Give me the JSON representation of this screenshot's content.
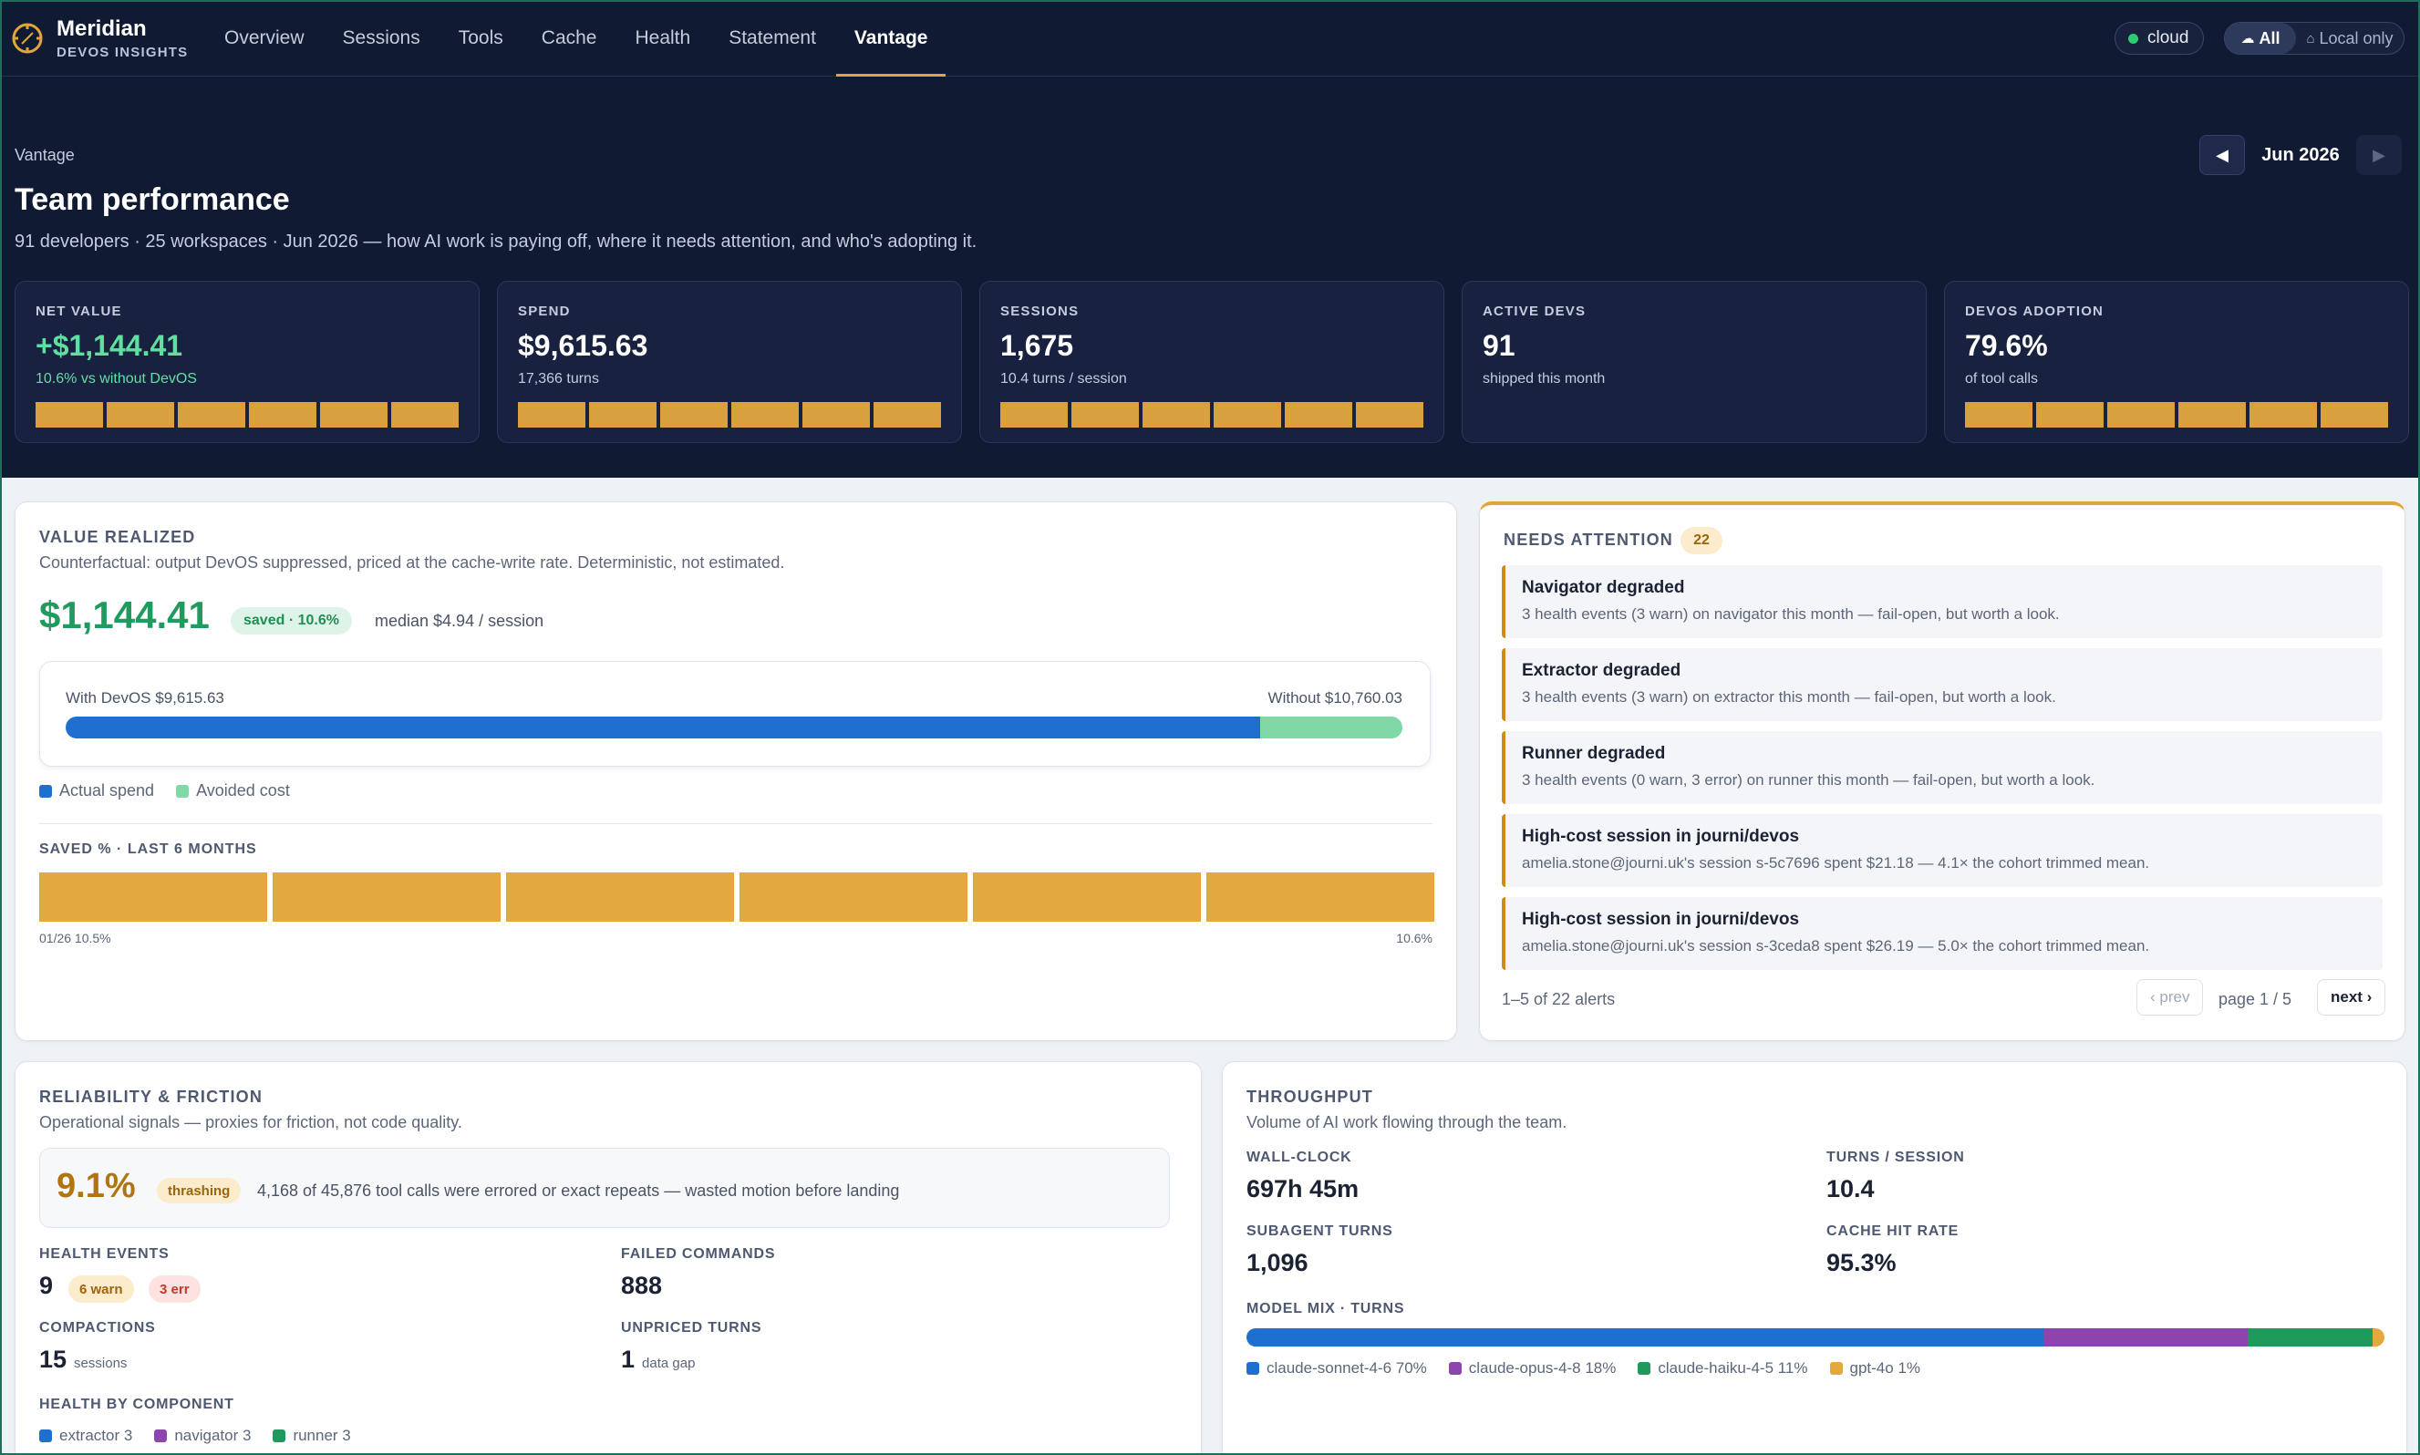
{
  "brand": {
    "name": "Meridian",
    "subtitle": "DEVOS INSIGHTS"
  },
  "nav": {
    "items": [
      "Overview",
      "Sessions",
      "Tools",
      "Cache",
      "Health",
      "Statement",
      "Vantage"
    ],
    "active": "Vantage"
  },
  "env": {
    "cloud_label": "cloud",
    "scope_all": "All",
    "scope_local": "Local only"
  },
  "hero": {
    "breadcrumb": "Vantage",
    "title": "Team performance",
    "subtitle": "91 developers · 25 workspaces · Jun 2026 — how AI work is paying off, where it needs attention, and who's adopting it.",
    "month": "Jun 2026"
  },
  "kpis": [
    {
      "label": "NET VALUE",
      "value": "+$1,144.41",
      "sub": "10.6% vs without DevOS"
    },
    {
      "label": "SPEND",
      "value": "$9,615.63",
      "sub": "17,366 turns"
    },
    {
      "label": "SESSIONS",
      "value": "1,675",
      "sub": "10.4 turns / session"
    },
    {
      "label": "ACTIVE DEVS",
      "value": "91",
      "sub": "shipped this month"
    },
    {
      "label": "DEVOS ADOPTION",
      "value": "79.6%",
      "sub": "of tool calls"
    }
  ],
  "value_realized": {
    "title": "VALUE REALIZED",
    "description": "Counterfactual: output DevOS suppressed, priced at the cache-write rate. Deterministic, not estimated.",
    "amount": "$1,144.41",
    "saved_badge": "saved · 10.6%",
    "median": "median $4.94 / session",
    "with_label": "With DevOS $9,615.63",
    "without_label": "Without $10,760.03",
    "with_value": 9615.63,
    "without_value": 10760.03,
    "legend": {
      "actual": "Actual spend",
      "avoided": "Avoided cost"
    },
    "saved_title": "SAVED % · LAST 6 MONTHS",
    "saved_start": "01/26 10.5%",
    "saved_end": "10.6%"
  },
  "needs_attention": {
    "title": "NEEDS ATTENTION",
    "count": "22",
    "alerts": [
      {
        "title": "Navigator degraded",
        "body": "3 health events (3 warn) on navigator this month — fail-open, but worth a look."
      },
      {
        "title": "Extractor degraded",
        "body": "3 health events (3 warn) on extractor this month — fail-open, but worth a look."
      },
      {
        "title": "Runner degraded",
        "body": "3 health events (0 warn, 3 error) on runner this month — fail-open, but worth a look."
      },
      {
        "title": "High-cost session in journi/devos",
        "body": "amelia.stone@journi.uk's session s-5c7696 spent $21.18 — 4.1× the cohort trimmed mean."
      },
      {
        "title": "High-cost session in journi/devos",
        "body": "amelia.stone@journi.uk's session s-3ceda8 spent $26.19 — 5.0× the cohort trimmed mean."
      }
    ],
    "pager_info": "1–5 of 22 alerts",
    "prev": "‹ prev",
    "page_label": "page 1 / 5",
    "next": "next ›"
  },
  "reliability": {
    "title": "RELIABILITY & FRICTION",
    "description": "Operational signals — proxies for friction, not code quality.",
    "thrashing_value": "9.1%",
    "thrashing_badge": "thrashing",
    "thrashing_text": "4,168 of 45,876 tool calls were errored or exact repeats — wasted motion before landing",
    "health_events_label": "HEALTH EVENTS",
    "health_events_value": "9",
    "warn_badge": "6 warn",
    "err_badge": "3 err",
    "failed_label": "FAILED COMMANDS",
    "failed_value": "888",
    "compactions_label": "COMPACTIONS",
    "compactions_value": "15",
    "compactions_unit": "sessions",
    "unpriced_label": "UNPRICED TURNS",
    "unpriced_value": "1",
    "unpriced_unit": "data gap",
    "component_title": "HEALTH BY COMPONENT",
    "components": [
      "extractor 3",
      "navigator 3",
      "runner 3"
    ]
  },
  "throughput": {
    "title": "THROUGHPUT",
    "description": "Volume of AI work flowing through the team.",
    "wall_label": "WALL-CLOCK",
    "wall_value": "697h 45m",
    "tps_label": "TURNS / SESSION",
    "tps_value": "10.4",
    "sub_label": "SUBAGENT TURNS",
    "sub_value": "1,096",
    "cache_label": "CACHE HIT RATE",
    "cache_value": "95.3%",
    "mix_title": "MODEL MIX · TURNS",
    "models": [
      {
        "label": "claude-sonnet-4-6 70%",
        "share": 70,
        "color": "#1f6fd1"
      },
      {
        "label": "claude-opus-4-8 18%",
        "share": 18,
        "color": "#8e44ad"
      },
      {
        "label": "claude-haiku-4-5 11%",
        "share": 11,
        "color": "#1f9a5c"
      },
      {
        "label": "gpt-4o 1%",
        "share": 1,
        "color": "#e4a93e"
      }
    ]
  },
  "colors": {
    "accent": "#e0a63b",
    "navy": "#111a33",
    "green": "#219a5f",
    "blue": "#1f6fd1",
    "avoided": "#7fd9a7"
  }
}
